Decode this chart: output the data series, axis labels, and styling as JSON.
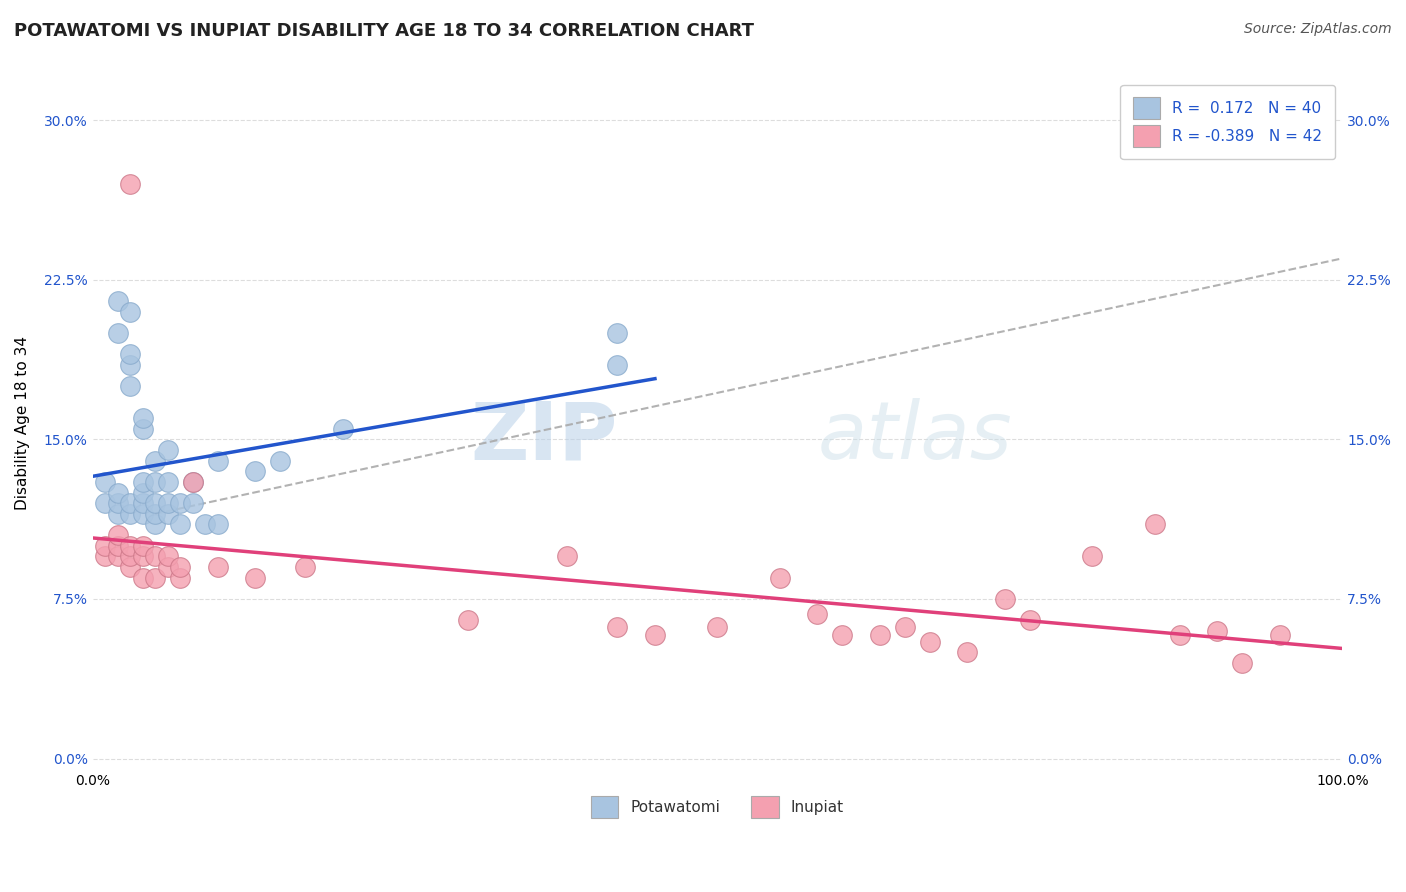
{
  "title": "POTAWATOMI VS INUPIAT DISABILITY AGE 18 TO 34 CORRELATION CHART",
  "source_text": "Source: ZipAtlas.com",
  "xlabel": "",
  "ylabel": "Disability Age 18 to 34",
  "xlim": [
    0.0,
    1.0
  ],
  "ylim": [
    -0.005,
    0.32
  ],
  "yticks": [
    0.0,
    0.075,
    0.15,
    0.225,
    0.3
  ],
  "ytick_labels": [
    "0.0%",
    "7.5%",
    "15.0%",
    "22.5%",
    "30.0%"
  ],
  "xtick_labels": [
    "0.0%",
    "100.0%"
  ],
  "potawatomi_R": 0.172,
  "potawatomi_N": 40,
  "inupiat_R": -0.389,
  "inupiat_N": 42,
  "potawatomi_color": "#a8c4e0",
  "inupiat_color": "#f4a0b0",
  "potawatomi_line_color": "#2255cc",
  "inupiat_line_color": "#e0407a",
  "trend_line_color": "#aaaaaa",
  "watermark_zip": "ZIP",
  "watermark_atlas": "atlas",
  "background_color": "#ffffff",
  "potawatomi_x": [
    0.01,
    0.01,
    0.02,
    0.02,
    0.02,
    0.02,
    0.02,
    0.03,
    0.03,
    0.03,
    0.03,
    0.03,
    0.03,
    0.04,
    0.04,
    0.04,
    0.04,
    0.04,
    0.04,
    0.05,
    0.05,
    0.05,
    0.05,
    0.05,
    0.06,
    0.06,
    0.06,
    0.06,
    0.07,
    0.07,
    0.08,
    0.08,
    0.09,
    0.1,
    0.1,
    0.13,
    0.15,
    0.2,
    0.42,
    0.42
  ],
  "potawatomi_y": [
    0.12,
    0.13,
    0.115,
    0.12,
    0.125,
    0.2,
    0.215,
    0.115,
    0.12,
    0.175,
    0.185,
    0.19,
    0.21,
    0.115,
    0.12,
    0.125,
    0.13,
    0.155,
    0.16,
    0.11,
    0.115,
    0.12,
    0.13,
    0.14,
    0.115,
    0.12,
    0.13,
    0.145,
    0.11,
    0.12,
    0.12,
    0.13,
    0.11,
    0.11,
    0.14,
    0.135,
    0.14,
    0.155,
    0.185,
    0.2
  ],
  "inupiat_x": [
    0.01,
    0.01,
    0.02,
    0.02,
    0.02,
    0.03,
    0.03,
    0.03,
    0.03,
    0.04,
    0.04,
    0.04,
    0.05,
    0.05,
    0.06,
    0.06,
    0.07,
    0.07,
    0.08,
    0.1,
    0.13,
    0.17,
    0.3,
    0.38,
    0.42,
    0.45,
    0.5,
    0.55,
    0.58,
    0.6,
    0.63,
    0.65,
    0.67,
    0.7,
    0.73,
    0.75,
    0.8,
    0.85,
    0.87,
    0.9,
    0.92,
    0.95
  ],
  "inupiat_y": [
    0.095,
    0.1,
    0.095,
    0.1,
    0.105,
    0.09,
    0.095,
    0.1,
    0.27,
    0.085,
    0.095,
    0.1,
    0.085,
    0.095,
    0.09,
    0.095,
    0.085,
    0.09,
    0.13,
    0.09,
    0.085,
    0.09,
    0.065,
    0.095,
    0.062,
    0.058,
    0.062,
    0.085,
    0.068,
    0.058,
    0.058,
    0.062,
    0.055,
    0.05,
    0.075,
    0.065,
    0.095,
    0.11,
    0.058,
    0.06,
    0.045,
    0.058
  ],
  "grid_color": "#dddddd",
  "title_fontsize": 13,
  "axis_label_fontsize": 11,
  "tick_fontsize": 10,
  "legend_fontsize": 11,
  "source_fontsize": 10
}
